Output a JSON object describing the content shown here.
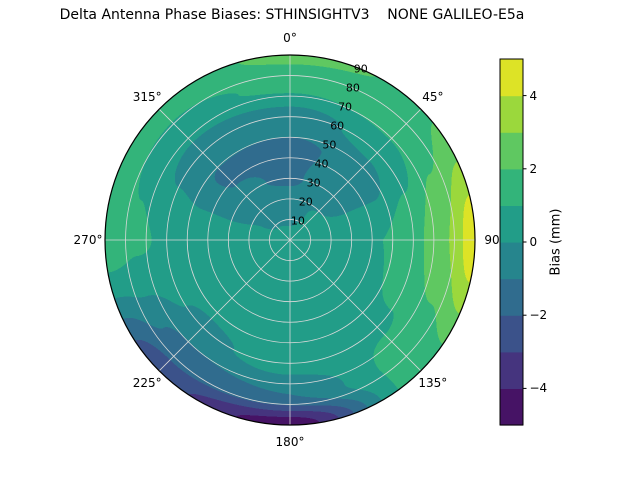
{
  "title": "Delta Antenna Phase Biases: STHINSIGHTV3    NONE GALILEO-E5a",
  "chart_data": {
    "type": "heatmap",
    "subtype": "polar_filled_contour",
    "title": "Delta Antenna Phase Biases: STHINSIGHTV3    NONE GALILEO-E5a",
    "angular_axis": {
      "zero_location": "top",
      "direction": "clockwise",
      "tick_angles_deg": [
        0,
        45,
        90,
        135,
        180,
        225,
        270,
        315
      ],
      "tick_labels": [
        "0°",
        "45°",
        "90",
        "135°",
        "180°",
        "225°",
        "270°",
        "315°"
      ]
    },
    "radial_axis": {
      "max": 90,
      "tick_values": [
        10,
        20,
        30,
        40,
        50,
        60,
        70,
        80,
        90
      ],
      "tick_labels": [
        "10",
        "20",
        "30",
        "40",
        "50",
        "60",
        "70",
        "80",
        "90"
      ],
      "label_angle_deg": 22.5
    },
    "grid": {
      "on": true,
      "color": "#d9d9d9",
      "spoke_step_deg": 45,
      "ring_step": 10,
      "outline_color": "#000000"
    },
    "field": {
      "units": "mm",
      "azimuth_deg": [
        0,
        45,
        90,
        135,
        180,
        225,
        270,
        315,
        360
      ],
      "zenith_deg": [
        0,
        15,
        30,
        45,
        60,
        75,
        90
      ],
      "bias_mm": [
        [
          0.3,
          -0.4,
          -1.1,
          -1.2,
          -0.4,
          1.2,
          2.2
        ],
        [
          0.3,
          0.1,
          -0.5,
          -0.7,
          0.3,
          1.4,
          1.9
        ],
        [
          0.3,
          0.5,
          0.8,
          1.0,
          1.7,
          2.9,
          4.6
        ],
        [
          0.3,
          0.5,
          0.8,
          0.9,
          0.9,
          1.3,
          1.6
        ],
        [
          0.3,
          0.4,
          0.6,
          0.7,
          0.4,
          -1.0,
          -4.6
        ],
        [
          0.3,
          0.4,
          0.5,
          0.4,
          -0.2,
          -1.3,
          -2.7
        ],
        [
          0.3,
          0.3,
          0.5,
          0.7,
          0.9,
          1.1,
          1.5
        ],
        [
          0.3,
          -0.2,
          -0.9,
          -1.1,
          -0.6,
          0.7,
          1.5
        ],
        [
          0.3,
          -0.4,
          -1.1,
          -1.2,
          -0.4,
          1.2,
          2.2
        ]
      ]
    },
    "contour_level_step": 1,
    "colorbar": {
      "label": "Bias (mm)",
      "tick_values": [
        4,
        2,
        0,
        -2,
        -4
      ],
      "tick_labels": [
        "4",
        "2",
        "0",
        "−2",
        "−4"
      ],
      "vmin": -5,
      "vmax": 5
    },
    "colormap": {
      "name": "viridis",
      "stops": [
        {
          "t": 0.0,
          "hex": "#440154"
        },
        {
          "t": 0.1,
          "hex": "#482475"
        },
        {
          "t": 0.2,
          "hex": "#414487"
        },
        {
          "t": 0.3,
          "hex": "#355f8d"
        },
        {
          "t": 0.4,
          "hex": "#2a788e"
        },
        {
          "t": 0.5,
          "hex": "#21918c"
        },
        {
          "t": 0.6,
          "hex": "#22a884"
        },
        {
          "t": 0.7,
          "hex": "#44bf70"
        },
        {
          "t": 0.8,
          "hex": "#7ad151"
        },
        {
          "t": 0.9,
          "hex": "#bddf26"
        },
        {
          "t": 1.0,
          "hex": "#fde725"
        }
      ]
    }
  }
}
